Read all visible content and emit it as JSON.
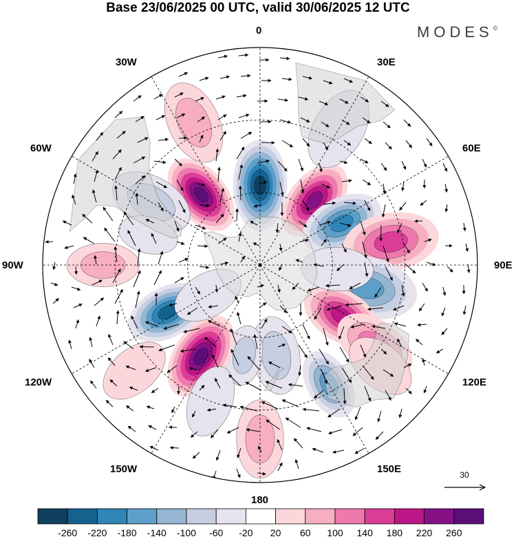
{
  "title": "Base 23/06/2025 00 UTC, valid 30/06/2025 12 UTC",
  "brand": {
    "name": "MODES",
    "mark": "©"
  },
  "longitude_labels": {
    "lon_0": "0",
    "lon_30e": "30E",
    "lon_60e": "60E",
    "lon_90e": "90E",
    "lon_120e": "120E",
    "lon_150e": "150E",
    "lon_180": "180",
    "lon_150w": "150W",
    "lon_120w": "120W",
    "lon_90w": "90W",
    "lon_60w": "60W",
    "lon_30w": "30W"
  },
  "reference_vector": {
    "value": "30"
  },
  "colorbar": {
    "ticks": [
      "-260",
      "-220",
      "-180",
      "-140",
      "-100",
      "-60",
      "-20",
      "20",
      "60",
      "100",
      "140",
      "180",
      "220",
      "260"
    ],
    "colors": [
      "#0e3f5e",
      "#15628f",
      "#2f84b8",
      "#5d9fc9",
      "#94b6d3",
      "#c6cfe2",
      "#e6e3ef",
      "#ffffff",
      "#fbd7dc",
      "#f6aec0",
      "#ee7aad",
      "#db3d97",
      "#bb1786",
      "#861185",
      "#5c0e78"
    ]
  },
  "colors": {
    "land": "#e2e2e2",
    "frame": "#000000"
  },
  "anomaly_centers": [
    {
      "lon": 0,
      "lat": -57,
      "value": -270,
      "span": 15
    },
    {
      "lon": 40,
      "lat": -55,
      "value": 250,
      "span": 14
    },
    {
      "lon": 63,
      "lat": -52,
      "value": -200,
      "span": 14
    },
    {
      "lon": 80,
      "lat": -35,
      "value": 140,
      "span": 16
    },
    {
      "lon": 102,
      "lat": -45,
      "value": -170,
      "span": 17
    },
    {
      "lon": 122,
      "lat": -50,
      "value": 200,
      "span": 14
    },
    {
      "lon": 125,
      "lat": -32,
      "value": 120,
      "span": 14
    },
    {
      "lon": 150,
      "lat": -33,
      "value": -140,
      "span": 12
    },
    {
      "lon": 180,
      "lat": -18,
      "value": 90,
      "span": 13
    },
    {
      "lon": 170,
      "lat": -52,
      "value": -80,
      "span": 13
    },
    {
      "lon": 190,
      "lat": -52,
      "value": -60,
      "span": 10
    },
    {
      "lon": 213,
      "lat": -45,
      "value": 270,
      "span": 15
    },
    {
      "lon": 243,
      "lat": -47,
      "value": -250,
      "span": 14
    },
    {
      "lon": 270,
      "lat": -25,
      "value": 70,
      "span": 12
    },
    {
      "lon": 320,
      "lat": -52,
      "value": 260,
      "span": 14
    },
    {
      "lon": 300,
      "lat": -38,
      "value": -60,
      "span": 14
    },
    {
      "lon": 335,
      "lat": -25,
      "value": 80,
      "span": 14
    },
    {
      "lon": 30,
      "lat": -25,
      "value": -40,
      "span": 14
    },
    {
      "lon": 93,
      "lat": -58,
      "value": -50,
      "span": 12
    },
    {
      "lon": 240,
      "lat": -65,
      "value": -40,
      "span": 12
    },
    {
      "lon": 130,
      "lat": -25,
      "value": 40,
      "span": 12
    },
    {
      "lon": 200,
      "lat": -30,
      "value": -40,
      "span": 12
    },
    {
      "lon": 230,
      "lat": -22,
      "value": 40,
      "span": 12
    },
    {
      "lon": 285,
      "lat": -42,
      "value": -50,
      "span": 10
    }
  ],
  "wind_vortices": [
    {
      "lon": 0,
      "lat": -57,
      "sense": 1
    },
    {
      "lon": 40,
      "lat": -55,
      "sense": -1
    },
    {
      "lon": 63,
      "lat": -52,
      "sense": 1
    },
    {
      "lon": 80,
      "lat": -35,
      "sense": -1
    },
    {
      "lon": 102,
      "lat": -45,
      "sense": 1
    },
    {
      "lon": 122,
      "lat": -50,
      "sense": -1
    },
    {
      "lon": 125,
      "lat": -32,
      "sense": -1
    },
    {
      "lon": 150,
      "lat": -33,
      "sense": 1
    },
    {
      "lon": 180,
      "lat": -18,
      "sense": -1
    },
    {
      "lon": 170,
      "lat": -52,
      "sense": 1
    },
    {
      "lon": 213,
      "lat": -45,
      "sense": -1
    },
    {
      "lon": 243,
      "lat": -47,
      "sense": 1
    },
    {
      "lon": 320,
      "lat": -52,
      "sense": -1
    },
    {
      "lon": 300,
      "lat": -38,
      "sense": 1
    },
    {
      "lon": 270,
      "lat": -25,
      "sense": -1
    }
  ]
}
